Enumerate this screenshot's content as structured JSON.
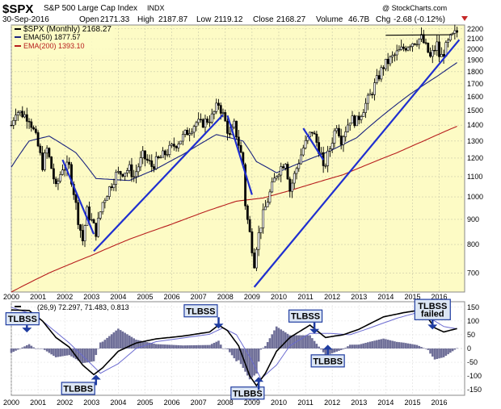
{
  "header": {
    "symbol": "$SPX",
    "name": "S&P 500 Large Cap Index",
    "exchange": "INDX",
    "date": "30-Sep-2016",
    "open_label": "Open",
    "open": "2171.33",
    "high_label": "High",
    "high": "2187.87",
    "low_label": "Low",
    "low": "2119.12",
    "close_label": "Close",
    "close": "2168.27",
    "volume_label": "Volume",
    "volume": "46.7B",
    "chg_label": "Chg",
    "chg": "-2.68 (-0.12%)",
    "watermark": "@ StockCharts.com"
  },
  "legend": {
    "price": "$SPX (Monthly) 2168.27",
    "ema50": "EMA(50) 1877.57",
    "ema200": "EMA(200) 1393.10",
    "macd": "(26,9) 72.297, 71.483, 0.813"
  },
  "colors": {
    "plot_bg": "#fdfbc5",
    "grid": "#c8c8a8",
    "candle": "#000000",
    "ema50": "#1a237e",
    "ema200": "#b71c1c",
    "trendline": "#1f2fd0",
    "label_bg": "#dce6f4",
    "label_border": "#1f3ca0",
    "label_text": "#000000",
    "arrow": "#1f3ca0",
    "histogram": "#6f6f98",
    "macd_line": "#000000",
    "signal_line": "#6a6ad0"
  },
  "chart_data": [
    {
      "type": "candlestick",
      "frequency": "monthly",
      "xticks": [
        "2000",
        "2001",
        "2002",
        "2003",
        "2004",
        "2005",
        "2006",
        "2007",
        "2008",
        "2009",
        "2010",
        "2011",
        "2012",
        "2013",
        "2014",
        "2015",
        "2016"
      ],
      "yticks": [
        700,
        800,
        900,
        1000,
        1100,
        1200,
        1300,
        1400,
        1500,
        1600,
        1700,
        1800,
        1900,
        2000,
        2100,
        2200
      ],
      "ylim": [
        640,
        2240
      ],
      "y_scale": "log",
      "close_path": [
        [
          "2000-01",
          1400
        ],
        [
          "2000-03",
          1500
        ],
        [
          "2000-09",
          1450
        ],
        [
          "2000-12",
          1320
        ],
        [
          "2001-03",
          1160
        ],
        [
          "2001-05",
          1250
        ],
        [
          "2001-09",
          1040
        ],
        [
          "2001-12",
          1150
        ],
        [
          "2002-03",
          1150
        ],
        [
          "2002-07",
          900
        ],
        [
          "2002-09",
          815
        ],
        [
          "2002-11",
          936
        ],
        [
          "2003-03",
          848
        ],
        [
          "2003-06",
          975
        ],
        [
          "2003-12",
          1110
        ],
        [
          "2004-06",
          1140
        ],
        [
          "2004-08",
          1100
        ],
        [
          "2004-12",
          1212
        ],
        [
          "2005-04",
          1156
        ],
        [
          "2005-12",
          1248
        ],
        [
          "2006-05",
          1310
        ],
        [
          "2006-12",
          1418
        ],
        [
          "2007-02",
          1406
        ],
        [
          "2007-07",
          1455
        ],
        [
          "2007-10",
          1549
        ],
        [
          "2007-12",
          1468
        ],
        [
          "2008-03",
          1323
        ],
        [
          "2008-05",
          1400
        ],
        [
          "2008-09",
          1166
        ],
        [
          "2008-10",
          968
        ],
        [
          "2008-11",
          896
        ],
        [
          "2009-02",
          735
        ],
        [
          "2009-03",
          798
        ],
        [
          "2009-06",
          919
        ],
        [
          "2009-12",
          1115
        ],
        [
          "2010-04",
          1187
        ],
        [
          "2010-06",
          1031
        ],
        [
          "2010-12",
          1258
        ],
        [
          "2011-04",
          1364
        ],
        [
          "2011-08",
          1219
        ],
        [
          "2011-09",
          1131
        ],
        [
          "2011-12",
          1258
        ],
        [
          "2012-03",
          1408
        ],
        [
          "2012-05",
          1310
        ],
        [
          "2012-09",
          1441
        ],
        [
          "2012-12",
          1426
        ],
        [
          "2013-06",
          1606
        ],
        [
          "2013-12",
          1848
        ],
        [
          "2014-06",
          1960
        ],
        [
          "2014-12",
          2059
        ],
        [
          "2015-05",
          2107
        ],
        [
          "2015-08",
          1972
        ],
        [
          "2015-09",
          1920
        ],
        [
          "2015-12",
          2044
        ],
        [
          "2016-01",
          1940
        ],
        [
          "2016-02",
          1932
        ],
        [
          "2016-06",
          2099
        ],
        [
          "2016-09",
          2168
        ]
      ],
      "ema50": [
        [
          "2000-01",
          1150
        ],
        [
          "2000-09",
          1300
        ],
        [
          "2001-06",
          1330
        ],
        [
          "2002-06",
          1230
        ],
        [
          "2003-03",
          1090
        ],
        [
          "2004-06",
          1080
        ],
        [
          "2005-06",
          1140
        ],
        [
          "2006-06",
          1220
        ],
        [
          "2007-09",
          1340
        ],
        [
          "2008-09",
          1300
        ],
        [
          "2009-03",
          1180
        ],
        [
          "2009-12",
          1120
        ],
        [
          "2010-12",
          1180
        ],
        [
          "2011-12",
          1240
        ],
        [
          "2012-12",
          1320
        ],
        [
          "2013-12",
          1470
        ],
        [
          "2014-12",
          1620
        ],
        [
          "2015-12",
          1760
        ],
        [
          "2016-09",
          1877.57
        ]
      ],
      "ema200": [
        [
          "2000-01",
          640
        ],
        [
          "2001-06",
          700
        ],
        [
          "2003-01",
          760
        ],
        [
          "2004-06",
          820
        ],
        [
          "2006-01",
          880
        ],
        [
          "2007-06",
          940
        ],
        [
          "2008-06",
          980
        ],
        [
          "2009-06",
          995
        ],
        [
          "2010-06",
          1030
        ],
        [
          "2011-06",
          1070
        ],
        [
          "2012-06",
          1110
        ],
        [
          "2013-06",
          1170
        ],
        [
          "2014-06",
          1230
        ],
        [
          "2015-06",
          1300
        ],
        [
          "2016-09",
          1393.1
        ]
      ],
      "trendlines": [
        {
          "from": [
            "2001-12",
            1190
          ],
          "to": [
            "2003-02",
            840
          ]
        },
        {
          "from": [
            "2003-02",
            775
          ],
          "to": [
            "2007-12",
            1470
          ]
        },
        {
          "from": [
            "2008-02",
            1465
          ],
          "to": [
            "2009-01",
            1010
          ]
        },
        {
          "from": [
            "2009-02",
            655
          ],
          "to": [
            "2016-10",
            2090
          ]
        },
        {
          "from": [
            "2010-12",
            1380
          ],
          "to": [
            "2011-09",
            1190
          ]
        },
        {
          "from": [
            "2014-01",
            2135
          ],
          "to": [
            "2016-07",
            2140
          ]
        }
      ]
    },
    {
      "type": "macd",
      "xticks": [
        "2000",
        "2001",
        "2002",
        "2003",
        "2004",
        "2005",
        "2006",
        "2007",
        "2008",
        "2009",
        "2010",
        "2011",
        "2012",
        "2013",
        "2014",
        "2015",
        "2016"
      ],
      "yticks": [
        150,
        100,
        50,
        0,
        -50,
        -100,
        -150
      ],
      "ylim": [
        -170,
        170
      ],
      "macd_line": [
        [
          "2000-01",
          140
        ],
        [
          "2000-09",
          138
        ],
        [
          "2001-03",
          100
        ],
        [
          "2001-09",
          40
        ],
        [
          "2002-03",
          5
        ],
        [
          "2002-09",
          -60
        ],
        [
          "2003-02",
          -95
        ],
        [
          "2003-06",
          -70
        ],
        [
          "2004-01",
          -10
        ],
        [
          "2004-09",
          20
        ],
        [
          "2005-06",
          35
        ],
        [
          "2006-06",
          45
        ],
        [
          "2007-06",
          60
        ],
        [
          "2007-10",
          85
        ],
        [
          "2008-02",
          65
        ],
        [
          "2008-07",
          10
        ],
        [
          "2008-12",
          -100
        ],
        [
          "2009-03",
          -135
        ],
        [
          "2009-07",
          -90
        ],
        [
          "2009-12",
          -10
        ],
        [
          "2010-06",
          40
        ],
        [
          "2011-03",
          85
        ],
        [
          "2011-10",
          40
        ],
        [
          "2012-06",
          50
        ],
        [
          "2013-01",
          70
        ],
        [
          "2013-12",
          115
        ],
        [
          "2014-09",
          130
        ],
        [
          "2015-03",
          138
        ],
        [
          "2015-08",
          110
        ],
        [
          "2015-11",
          75
        ],
        [
          "2016-03",
          60
        ],
        [
          "2016-09",
          72.297
        ]
      ],
      "signal_line": [
        [
          "2000-01",
          150
        ],
        [
          "2000-12",
          120
        ],
        [
          "2001-06",
          80
        ],
        [
          "2002-03",
          20
        ],
        [
          "2002-12",
          -50
        ],
        [
          "2003-05",
          -90
        ],
        [
          "2004-01",
          -55
        ],
        [
          "2004-09",
          0
        ],
        [
          "2005-06",
          25
        ],
        [
          "2006-06",
          38
        ],
        [
          "2007-06",
          52
        ],
        [
          "2007-12",
          75
        ],
        [
          "2008-06",
          50
        ],
        [
          "2008-12",
          -30
        ],
        [
          "2009-05",
          -110
        ],
        [
          "2009-12",
          -60
        ],
        [
          "2010-06",
          10
        ],
        [
          "2011-03",
          55
        ],
        [
          "2011-12",
          55
        ],
        [
          "2012-09",
          50
        ],
        [
          "2013-06",
          75
        ],
        [
          "2014-06",
          110
        ],
        [
          "2015-03",
          130
        ],
        [
          "2015-09",
          110
        ],
        [
          "2016-03",
          80
        ],
        [
          "2016-09",
          71.483
        ]
      ],
      "histogram_range": [
        "2000-01",
        "2016-09"
      ]
    }
  ],
  "annotations": [
    {
      "text": "TLBSS",
      "x": "2000-06",
      "y": 108
    },
    {
      "text": "TLBBS",
      "x": "2002-07",
      "y": -145
    },
    {
      "text": "TLBSS",
      "x": "2007-02",
      "y": 137
    },
    {
      "text": "TLBBS",
      "x": "2008-11",
      "y": -162
    },
    {
      "text": "TLBSS",
      "x": "2011-01",
      "y": 118
    },
    {
      "text": "TLBBS",
      "x": "2011-11",
      "y": -45
    },
    {
      "text": "TLBSS",
      "x": "2015-10",
      "y": 155
    },
    {
      "text": "failed",
      "x": "2015-10",
      "y": 128
    }
  ]
}
